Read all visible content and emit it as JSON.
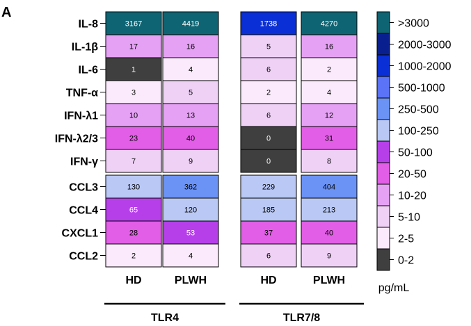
{
  "panel_label": "A",
  "chart_data": {
    "type": "heatmap",
    "rows": [
      "IL-8",
      "IL-1β",
      "IL-6",
      "TNF-α",
      "IFN-λ1",
      "IFN-λ2/3",
      "IFN-γ",
      "CCL3",
      "CCL4",
      "CXCL1",
      "CCL2"
    ],
    "columns": [
      "HD",
      "PLWH",
      "HD",
      "PLWH"
    ],
    "groups": [
      {
        "label": "TLR4",
        "columns": [
          0,
          1
        ]
      },
      {
        "label": "TLR7/8",
        "columns": [
          2,
          3
        ]
      }
    ],
    "values": [
      [
        3167,
        4419,
        1738,
        4270
      ],
      [
        17,
        16,
        5,
        16
      ],
      [
        1,
        4,
        6,
        2
      ],
      [
        3,
        5,
        2,
        4
      ],
      [
        10,
        13,
        6,
        12
      ],
      [
        23,
        40,
        0,
        31
      ],
      [
        7,
        9,
        0,
        8
      ],
      [
        130,
        362,
        229,
        404
      ],
      [
        65,
        120,
        185,
        213
      ],
      [
        28,
        53,
        37,
        40
      ],
      [
        2,
        4,
        6,
        9
      ]
    ],
    "row_gap_after": 6,
    "column_gap_after": 1,
    "legend": {
      "unit": "pg/mL",
      "bins": [
        {
          "label": ">3000",
          "min": 3000,
          "max": null,
          "color": "#0e6473"
        },
        {
          "label": "2000-3000",
          "min": 2000,
          "max": 3000,
          "color": "#0a1f8f"
        },
        {
          "label": "1000-2000",
          "min": 1000,
          "max": 2000,
          "color": "#0a2fd6"
        },
        {
          "label": "500-1000",
          "min": 500,
          "max": 1000,
          "color": "#5b73f6"
        },
        {
          "label": "250-500",
          "min": 250,
          "max": 500,
          "color": "#6b93f6"
        },
        {
          "label": "100-250",
          "min": 100,
          "max": 250,
          "color": "#b9c8f5"
        },
        {
          "label": "50-100",
          "min": 50,
          "max": 100,
          "color": "#b73fea"
        },
        {
          "label": "20-50",
          "min": 20,
          "max": 50,
          "color": "#e25ee6"
        },
        {
          "label": "10-20",
          "min": 10,
          "max": 20,
          "color": "#e5a1f4"
        },
        {
          "label": "5-10",
          "min": 5,
          "max": 10,
          "color": "#efd1f6"
        },
        {
          "label": "2-5",
          "min": 2,
          "max": 5,
          "color": "#fbeafc"
        },
        {
          "label": "0-2",
          "min": 0,
          "max": 2,
          "color": "#3f3f3f"
        }
      ]
    }
  }
}
